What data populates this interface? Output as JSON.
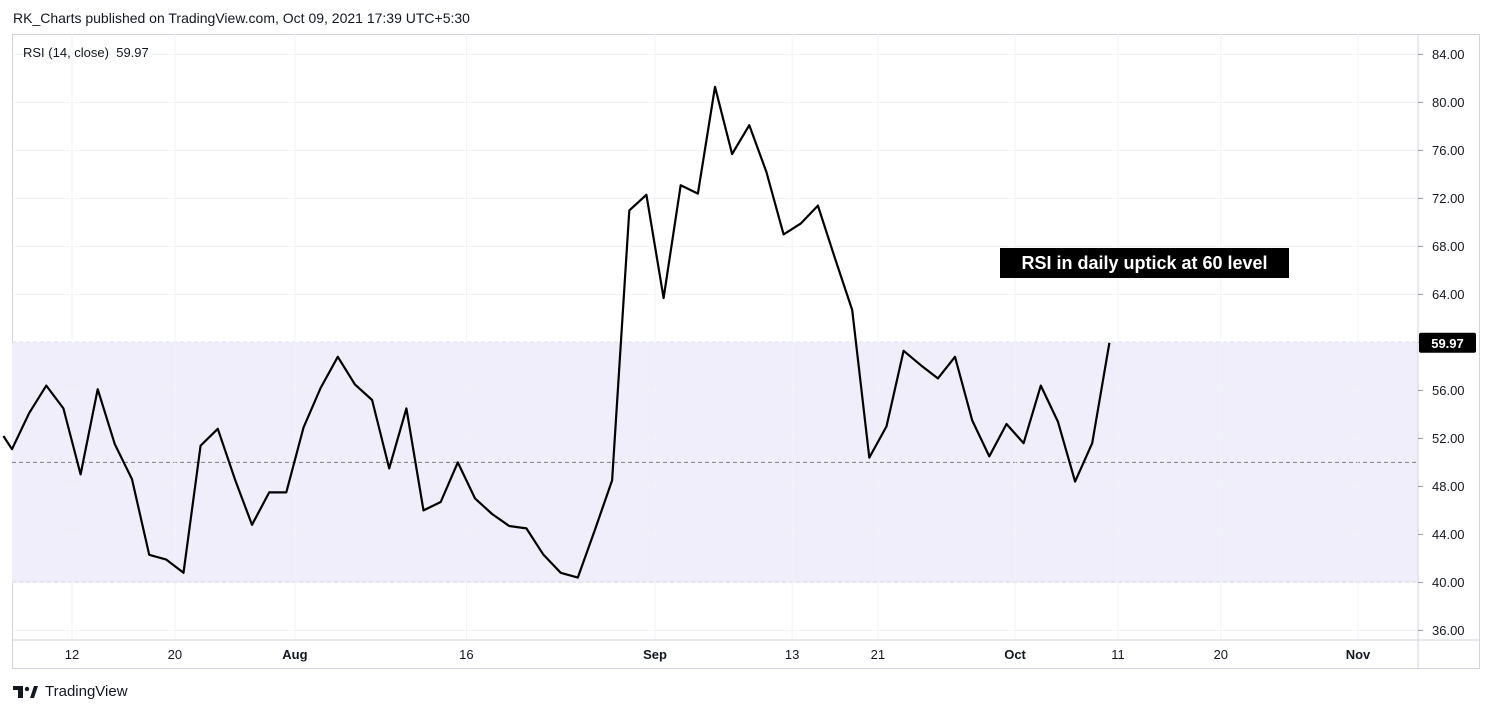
{
  "header": {
    "published": "RK_Charts published on TradingView.com, Oct 09, 2021 17:39 UTC+5:30"
  },
  "indicator": {
    "label": "RSI (14, close)",
    "value": "59.97"
  },
  "annotation": {
    "text": "RSI in daily uptick at 60 level"
  },
  "footer": {
    "brand": "TradingView"
  },
  "colors": {
    "line": "#000000",
    "band": "#f0eefa",
    "grid": "#f0f3fa",
    "dashed": "#787b86",
    "current_label_bg": "#000000"
  },
  "chart_data": {
    "type": "line",
    "title": "",
    "xlabel": "",
    "ylabel": "",
    "ylim": [
      35.2,
      85.7
    ],
    "y_ticks": [
      "36.00",
      "40.00",
      "44.00",
      "48.00",
      "52.00",
      "56.00",
      "60.00",
      "64.00",
      "68.00",
      "72.00",
      "76.00",
      "80.00",
      "84.00"
    ],
    "x_ticks": [
      "12",
      "20",
      "Aug",
      "16",
      "Sep",
      "13",
      "21",
      "Oct",
      "11",
      "20",
      "Nov"
    ],
    "x_tick_bars": [
      4,
      10,
      17,
      27,
      38,
      46,
      51,
      59,
      65,
      71,
      79
    ],
    "bar_range": [
      0.5,
      82.5
    ],
    "bands": {
      "upper": 60,
      "middle": 50,
      "lower": 40
    },
    "current_value": 59.97,
    "current_label": "59.97",
    "grid": true,
    "series": [
      {
        "x": [
          0,
          0.5,
          1.5,
          2.5,
          3.5,
          4.5,
          5.5,
          6.5,
          7.5,
          8.5,
          9.5,
          10.5,
          11.5,
          12.5,
          13.5,
          14.5,
          15.5,
          16.5,
          17.5,
          18.5,
          19.5,
          20.5,
          21.5,
          22.5,
          23.5,
          24.5,
          25.5,
          26.5,
          27.5,
          28.5,
          29.5,
          30.5,
          31.5,
          32.5,
          33.5,
          34.5,
          35.5,
          36.5,
          37.5,
          38.5,
          39.5,
          40.5,
          41.5,
          42.5,
          43.5,
          44.5,
          45.5,
          46.5,
          47.5,
          48.5,
          49.5,
          50.5,
          51.5,
          52.5,
          53.5,
          54.5,
          55.5,
          56.5,
          57.5,
          58.5,
          59.5,
          60.5,
          61.5,
          62.5,
          63.5,
          64.5
        ],
        "values": [
          52.2,
          51.1,
          54.1,
          56.4,
          54.5,
          49.0,
          56.1,
          51.5,
          48.6,
          42.3,
          41.9,
          40.8,
          51.4,
          52.8,
          48.6,
          44.8,
          47.5,
          47.5,
          52.9,
          56.2,
          58.8,
          56.5,
          55.2,
          49.5,
          54.5,
          46.0,
          46.7,
          50.0,
          47.0,
          45.7,
          44.7,
          44.5,
          42.3,
          40.8,
          40.4,
          44.4,
          48.5,
          71.0,
          72.3,
          63.7,
          73.1,
          72.4,
          81.3,
          75.7,
          78.1,
          74.2,
          69.0,
          69.9,
          71.4,
          67.0,
          62.7,
          50.4,
          53.0,
          59.3,
          58.1,
          57.0,
          58.8,
          53.5,
          50.5,
          53.2,
          51.6,
          56.4,
          53.4,
          48.4,
          51.6,
          59.97
        ]
      }
    ]
  }
}
